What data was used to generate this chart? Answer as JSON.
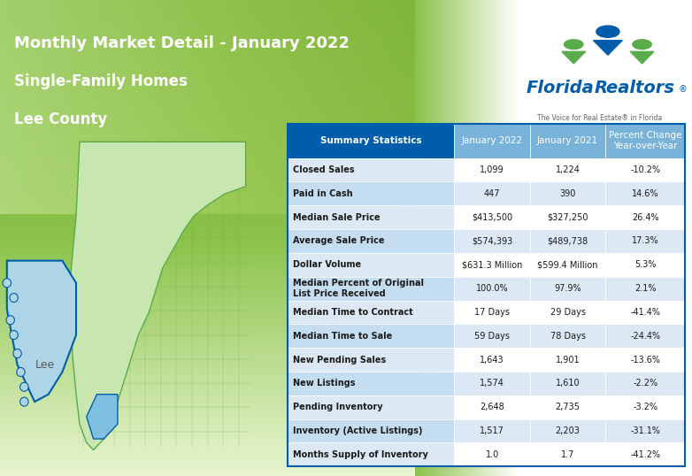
{
  "title_line1": "Monthly Market Detail - January 2022",
  "title_line2": "Single-Family Homes",
  "title_line3": "Lee County",
  "header_cols": [
    "Summary Statistics",
    "January 2022",
    "January 2021",
    "Percent Change\nYear-over-Year"
  ],
  "rows": [
    [
      "Closed Sales",
      "1,099",
      "1,224",
      "-10.2%"
    ],
    [
      "Paid in Cash",
      "447",
      "390",
      "14.6%"
    ],
    [
      "Median Sale Price",
      "$413,500",
      "$327,250",
      "26.4%"
    ],
    [
      "Average Sale Price",
      "$574,393",
      "$489,738",
      "17.3%"
    ],
    [
      "Dollar Volume",
      "$631.3 Million",
      "$599.4 Million",
      "5.3%"
    ],
    [
      "Median Percent of Original\nList Price Received",
      "100.0%",
      "97.9%",
      "2.1%"
    ],
    [
      "Median Time to Contract",
      "17 Days",
      "29 Days",
      "-41.4%"
    ],
    [
      "Median Time to Sale",
      "59 Days",
      "78 Days",
      "-24.4%"
    ],
    [
      "New Pending Sales",
      "1,643",
      "1,901",
      "-13.6%"
    ],
    [
      "New Listings",
      "1,574",
      "1,610",
      "-2.2%"
    ],
    [
      "Pending Inventory",
      "2,648",
      "2,735",
      "-3.2%"
    ],
    [
      "Inventory (Active Listings)",
      "1,517",
      "2,203",
      "-31.1%"
    ],
    [
      "Months Supply of Inventory",
      "1.0",
      "1.7",
      "-41.2%"
    ]
  ],
  "bg_gradient_top": "#7dc243",
  "bg_gradient_bottom": "#ffffff",
  "table_header_bg": "#005dab",
  "table_header_text": "#ffffff",
  "row_alt_bg1": "#ffffff",
  "row_alt_bg2": "#dce9f5",
  "col1_bg_even": "#dce9f5",
  "col1_bg_odd": "#c5ddf0",
  "table_text_color": "#1a1a1a",
  "border_color": "#005dab",
  "title_text_color": "#ffffff",
  "map_highlight_color": "#7fbfdf",
  "map_fl_color": "#c8e6c9",
  "florida_realtors_green": "#5aab4a",
  "florida_realtors_blue": "#005dab"
}
